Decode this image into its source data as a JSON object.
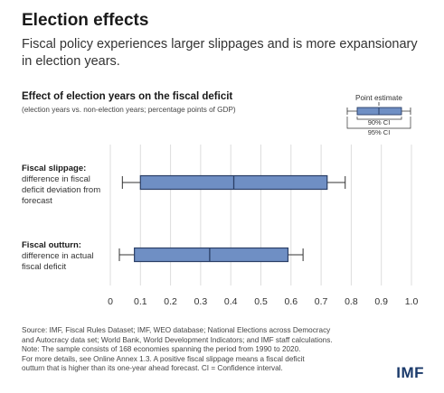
{
  "header": {
    "title": "Election effects",
    "subtitle": "Fiscal policy experiences larger slippages and is more expansionary in election years."
  },
  "chart_data": {
    "type": "boxplot",
    "title": "Effect of election years on the fiscal deficit",
    "subtitle": "(election years vs. non-election years; percentage points of GDP)",
    "xlim": [
      0,
      1.0
    ],
    "xticks": [
      "0",
      "0.1",
      "0.2",
      "0.3",
      "0.4",
      "0.5",
      "0.6",
      "0.7",
      "0.8",
      "0.9",
      "1.0"
    ],
    "grid": "vertical",
    "series": [
      {
        "name": "Fiscal slippage:",
        "description": "difference in fiscal deficit deviation from forecast",
        "point_estimate": 0.41,
        "ci90": [
          0.1,
          0.72
        ],
        "ci95": [
          0.04,
          0.78
        ]
      },
      {
        "name": "Fiscal outturn:",
        "description": "difference in actual fiscal deficit",
        "point_estimate": 0.33,
        "ci90": [
          0.08,
          0.59
        ],
        "ci95": [
          0.03,
          0.64
        ]
      }
    ],
    "legend": {
      "point_estimate": "Point estimate",
      "ci90": "90% CI",
      "ci95": "95% CI",
      "position": "top-right"
    },
    "colors": {
      "box_fill": "#6f8fc4",
      "box_stroke": "#2b3f66",
      "whisker": "#333333",
      "grid": "#dddddd"
    }
  },
  "footer": {
    "source_lines": [
      "Source: IMF, Fiscal Rules Dataset; IMF, WEO database; National Elections across Democracy",
      "and Autocracy data set; World Bank, World Development Indicators; and IMF staff calculations.",
      "Note: The sample consists of 168 economies spanning the period from 1990 to 2020.",
      "For more details, see Online Annex 1.3. A positive fiscal slippage means a fiscal deficit",
      "outturn that is higher than its one-year ahead forecast. CI = Confidence interval."
    ],
    "logo": "IMF"
  }
}
